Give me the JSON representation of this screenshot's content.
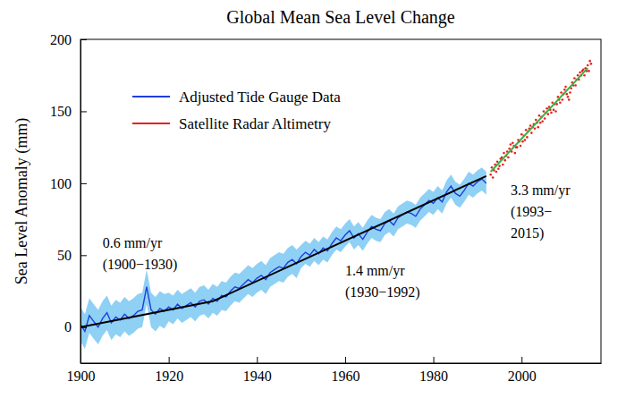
{
  "chart_data": {
    "type": "line",
    "title": "Global Mean Sea Level Change",
    "y_label": "Sea Level Anomaly (mm)",
    "xlim": [
      1900,
      2018
    ],
    "ylim": [
      -25,
      200
    ],
    "xticks": [
      1900,
      1920,
      1940,
      1960,
      1980,
      2000
    ],
    "yticks": [
      0,
      50,
      100,
      150,
      200
    ],
    "grid": false,
    "legend": "upper left",
    "series": [
      {
        "name": "Adjusted Tide Gauge Data",
        "type": "line",
        "color": "#1f3fdb",
        "line_style": "solid",
        "x": [
          1900,
          1901,
          1902,
          1903,
          1904,
          1905,
          1906,
          1907,
          1908,
          1909,
          1910,
          1911,
          1912,
          1913,
          1914,
          1915,
          1916,
          1917,
          1918,
          1919,
          1920,
          1921,
          1922,
          1923,
          1924,
          1925,
          1926,
          1927,
          1928,
          1929,
          1930,
          1931,
          1932,
          1933,
          1934,
          1935,
          1936,
          1937,
          1938,
          1939,
          1940,
          1941,
          1942,
          1943,
          1944,
          1945,
          1946,
          1947,
          1948,
          1949,
          1950,
          1951,
          1952,
          1953,
          1954,
          1955,
          1956,
          1957,
          1958,
          1959,
          1960,
          1961,
          1962,
          1963,
          1964,
          1965,
          1966,
          1967,
          1968,
          1969,
          1970,
          1971,
          1972,
          1973,
          1974,
          1975,
          1976,
          1977,
          1978,
          1979,
          1980,
          1981,
          1982,
          1983,
          1984,
          1985,
          1986,
          1987,
          1988,
          1989,
          1990,
          1991,
          1992
        ],
        "values": [
          2,
          -3,
          8,
          4,
          0,
          6,
          10,
          3,
          7,
          5,
          9,
          6,
          8,
          11,
          12,
          28,
          12,
          9,
          13,
          11,
          14,
          12,
          16,
          13,
          15,
          17,
          14,
          18,
          19,
          16,
          20,
          18,
          22,
          21,
          25,
          28,
          27,
          30,
          33,
          31,
          34,
          36,
          33,
          38,
          40,
          42,
          41,
          45,
          47,
          44,
          49,
          52,
          50,
          54,
          51,
          55,
          53,
          58,
          62,
          60,
          64,
          67,
          62,
          65,
          61,
          66,
          70,
          68,
          67,
          72,
          74,
          71,
          76,
          78,
          80,
          79,
          77,
          82,
          85,
          88,
          86,
          90,
          87,
          94,
          98,
          93,
          91,
          95,
          100,
          98,
          101,
          103,
          100
        ],
        "error": [
          12,
          12,
          12,
          12,
          12,
          12,
          12,
          12,
          12,
          12,
          12,
          12,
          12,
          12,
          12,
          12,
          12,
          12,
          12,
          12,
          10,
          10,
          10,
          10,
          10,
          10,
          10,
          10,
          10,
          10,
          10,
          10,
          10,
          10,
          10,
          10,
          10,
          10,
          10,
          10,
          10,
          10,
          10,
          10,
          10,
          10,
          10,
          10,
          10,
          10,
          8,
          8,
          8,
          8,
          8,
          8,
          8,
          8,
          8,
          8,
          8,
          8,
          8,
          8,
          8,
          8,
          8,
          8,
          8,
          8,
          8,
          8,
          8,
          8,
          8,
          8,
          8,
          8,
          8,
          8,
          8,
          8,
          8,
          8,
          8,
          8,
          8,
          8,
          8,
          8,
          8,
          8,
          8
        ]
      },
      {
        "name": "Satellite Radar Altimetry",
        "type": "scatter",
        "color": "#e8201c",
        "marker": "dot",
        "x": [
          1993,
          1993.25,
          1993.5,
          1993.75,
          1994,
          1994.25,
          1994.5,
          1994.75,
          1995,
          1995.25,
          1995.5,
          1995.75,
          1996,
          1996.25,
          1996.5,
          1996.75,
          1997,
          1997.25,
          1997.5,
          1997.75,
          1998,
          1998.25,
          1998.5,
          1998.75,
          1999,
          1999.25,
          1999.5,
          1999.75,
          2000,
          2000.25,
          2000.5,
          2000.75,
          2001,
          2001.25,
          2001.5,
          2001.75,
          2002,
          2002.25,
          2002.5,
          2002.75,
          2003,
          2003.25,
          2003.5,
          2003.75,
          2004,
          2004.25,
          2004.5,
          2004.75,
          2005,
          2005.25,
          2005.5,
          2005.75,
          2006,
          2006.25,
          2006.5,
          2006.75,
          2007,
          2007.25,
          2007.5,
          2007.75,
          2008,
          2008.25,
          2008.5,
          2008.75,
          2009,
          2009.25,
          2009.5,
          2009.75,
          2010,
          2010.25,
          2010.5,
          2010.75,
          2011,
          2011.25,
          2011.5,
          2011.75,
          2012,
          2012.25,
          2012.5,
          2012.75,
          2013,
          2013.25,
          2013.5,
          2013.75,
          2014,
          2014.25,
          2014.5,
          2014.75,
          2015,
          2015.25,
          2015.5,
          2015.75
        ],
        "values": [
          106,
          111,
          104,
          109,
          113,
          108,
          115,
          110,
          112,
          117,
          118,
          113,
          121,
          116,
          119,
          122,
          118,
          124,
          127,
          122,
          128,
          126,
          121,
          125,
          125,
          130,
          129,
          126,
          134,
          129,
          133,
          130,
          137,
          132,
          136,
          138,
          140,
          135,
          139,
          141,
          138,
          144,
          142,
          139,
          147,
          142,
          146,
          143,
          150,
          145,
          149,
          152,
          148,
          153,
          151,
          149,
          156,
          151,
          155,
          150,
          155,
          160,
          158,
          156,
          163,
          158,
          162,
          165,
          167,
          162,
          160,
          158,
          163,
          166,
          170,
          168,
          173,
          168,
          172,
          175,
          172,
          177,
          175,
          178,
          179,
          175,
          180,
          178,
          182,
          178,
          185,
          183
        ]
      },
      {
        "type": "line",
        "color": "#000000",
        "line_style": "solid",
        "x": [
          1900,
          1930,
          1992
        ],
        "values": [
          0,
          18,
          105
        ]
      },
      {
        "type": "line",
        "color": "#3cb043",
        "line_style": "solid",
        "x": [
          1993,
          2015
        ],
        "values": [
          108,
          180
        ]
      }
    ],
    "annotations": [
      {
        "lines": [
          "0.6 mm/yr",
          "(1900−1930)"
        ],
        "x": 1905,
        "y": 55
      },
      {
        "lines": [
          "1.4 mm/yr",
          "(1930−1992)"
        ],
        "x": 1960,
        "y": 36
      },
      {
        "lines": [
          "3.3 mm/yr",
          "(1993−",
          "2015)"
        ],
        "x": 1997.5,
        "y": 92
      }
    ]
  }
}
